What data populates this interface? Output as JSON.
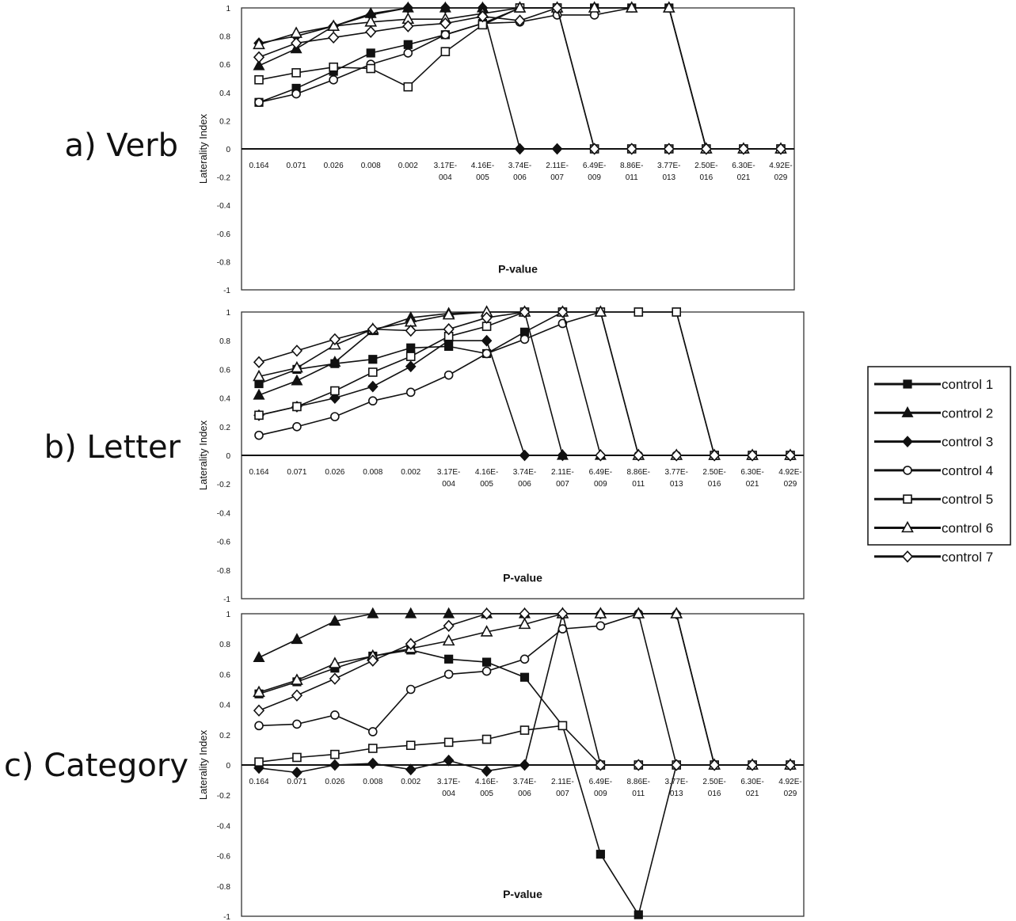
{
  "legend": {
    "entries": [
      {
        "label": "control 1",
        "marker": "square-filled"
      },
      {
        "label": "control 2",
        "marker": "triangle-filled"
      },
      {
        "label": "control 3",
        "marker": "diamond-filled"
      },
      {
        "label": "control 4",
        "marker": "circle-open"
      },
      {
        "label": "control 5",
        "marker": "square-open"
      },
      {
        "label": "control 6",
        "marker": "triangle-open"
      },
      {
        "label": "control 7",
        "marker": "diamond-open"
      }
    ]
  },
  "chart_data": [
    {
      "type": "line",
      "panel_label": "a) Verb",
      "xlabel": "P-value",
      "ylabel": "Laterality Index",
      "ylim": [
        -1,
        1
      ],
      "yticks": [
        "1",
        "0.8",
        "0.6",
        "0.4",
        "0.2",
        "0",
        "-0.2",
        "-0.4",
        "-0.6",
        "-0.8",
        "-1"
      ],
      "categories": [
        "0.164",
        "0.071",
        "0.026",
        "0.008",
        "0.002",
        "3.17E-004",
        "4.16E-005",
        "3.74E-006",
        "2.11E-007",
        "6.49E-009",
        "8.86E-011",
        "3.77E-013",
        "2.50E-016",
        "6.30E-021",
        "4.92E-029"
      ],
      "grid": false,
      "series": [
        {
          "name": "control 1",
          "values": [
            0.33,
            0.43,
            0.55,
            0.68,
            0.74,
            0.81,
            0.89,
            1,
            1,
            1,
            1,
            1,
            0,
            0,
            0
          ]
        },
        {
          "name": "control 2",
          "values": [
            0.59,
            0.71,
            0.87,
            0.96,
            1,
            1,
            1,
            1,
            1,
            1,
            1,
            1,
            0,
            0,
            0
          ]
        },
        {
          "name": "control 3",
          "values": [
            0.75,
            0.8,
            0.87,
            0.95,
            1,
            1,
            1,
            0,
            0,
            0,
            0,
            0,
            0,
            0,
            0
          ]
        },
        {
          "name": "control 4",
          "values": [
            0.33,
            0.39,
            0.49,
            0.6,
            0.68,
            0.81,
            0.89,
            0.9,
            0.95,
            0.95,
            1,
            1,
            0,
            0,
            0
          ]
        },
        {
          "name": "control 5",
          "values": [
            0.49,
            0.54,
            0.58,
            0.57,
            0.44,
            0.69,
            0.88,
            1,
            1,
            0,
            0,
            0,
            0,
            0,
            0
          ]
        },
        {
          "name": "control 6",
          "values": [
            0.74,
            0.82,
            0.87,
            0.9,
            0.92,
            0.92,
            0.96,
            1,
            1,
            1,
            1,
            1,
            0,
            0,
            0
          ]
        },
        {
          "name": "control 7",
          "values": [
            0.65,
            0.75,
            0.79,
            0.83,
            0.87,
            0.89,
            0.94,
            0.91,
            1,
            0,
            0,
            0,
            0,
            0,
            0
          ]
        }
      ]
    },
    {
      "type": "line",
      "panel_label": "b) Letter",
      "xlabel": "P-value",
      "ylabel": "Laterality Index",
      "ylim": [
        -1,
        1
      ],
      "yticks": [
        "1",
        "0.8",
        "0.6",
        "0.4",
        "0.2",
        "0",
        "-0.2",
        "-0.4",
        "-0.6",
        "-0.8",
        "-1"
      ],
      "categories": [
        "0.164",
        "0.071",
        "0.026",
        "0.008",
        "0.002",
        "3.17E-004",
        "4.16E-005",
        "3.74E-006",
        "2.11E-007",
        "6.49E-009",
        "8.86E-011",
        "3.77E-013",
        "2.50E-016",
        "6.30E-021",
        "4.92E-029"
      ],
      "grid": false,
      "series": [
        {
          "name": "control 1",
          "values": [
            0.5,
            0.6,
            0.64,
            0.67,
            0.75,
            0.76,
            0.71,
            0.86,
            1,
            1,
            1,
            1,
            0,
            0,
            0
          ]
        },
        {
          "name": "control 2",
          "values": [
            0.42,
            0.52,
            0.65,
            0.87,
            0.96,
            0.99,
            1,
            1,
            0,
            0,
            0,
            0,
            0,
            0,
            0
          ]
        },
        {
          "name": "control 3",
          "values": [
            0.28,
            0.34,
            0.4,
            0.48,
            0.62,
            0.8,
            0.8,
            0,
            0,
            0,
            0,
            0,
            0,
            0,
            0
          ]
        },
        {
          "name": "control 4",
          "values": [
            0.14,
            0.2,
            0.27,
            0.38,
            0.44,
            0.56,
            0.71,
            0.81,
            0.92,
            1,
            0,
            0,
            0,
            0,
            0
          ]
        },
        {
          "name": "control 5",
          "values": [
            0.28,
            0.34,
            0.45,
            0.58,
            0.69,
            0.83,
            0.9,
            1,
            1,
            1,
            1,
            1,
            0,
            0,
            0
          ]
        },
        {
          "name": "control 6",
          "values": [
            0.55,
            0.61,
            0.77,
            0.88,
            0.93,
            0.98,
            1,
            1,
            1,
            1,
            0,
            0,
            0,
            0,
            0
          ]
        },
        {
          "name": "control 7",
          "values": [
            0.65,
            0.73,
            0.81,
            0.88,
            0.87,
            0.88,
            0.96,
            1,
            1,
            0,
            0,
            0,
            0,
            0,
            0
          ]
        }
      ]
    },
    {
      "type": "line",
      "panel_label": "c) Category",
      "xlabel": "P-value",
      "ylabel": "Laterality Index",
      "ylim": [
        -1,
        1
      ],
      "yticks": [
        "1",
        "0.8",
        "0.6",
        "0.4",
        "0.2",
        "0",
        "-0.2",
        "-0.4",
        "-0.6",
        "-0.8",
        "-1"
      ],
      "categories": [
        "0.164",
        "0.071",
        "0.026",
        "0.008",
        "0.002",
        "3.17E-004",
        "4.16E-005",
        "3.74E-006",
        "2.11E-007",
        "6.49E-009",
        "8.86E-011",
        "3.77E-013",
        "2.50E-016",
        "6.30E-021",
        "4.92E-029"
      ],
      "grid": false,
      "series": [
        {
          "name": "control 1",
          "values": [
            0.47,
            0.55,
            0.64,
            0.72,
            0.76,
            0.7,
            0.68,
            0.58,
            0.26,
            -0.59,
            -0.99,
            0,
            0,
            0,
            0
          ]
        },
        {
          "name": "control 2",
          "values": [
            0.71,
            0.83,
            0.95,
            1,
            1,
            1,
            1,
            1,
            1,
            1,
            1,
            1,
            0,
            0,
            0
          ]
        },
        {
          "name": "control 3",
          "values": [
            -0.02,
            -0.05,
            0,
            0.01,
            -0.03,
            0.03,
            -0.04,
            0,
            1,
            1,
            1,
            1,
            0,
            0,
            0
          ]
        },
        {
          "name": "control 4",
          "values": [
            0.26,
            0.27,
            0.33,
            0.22,
            0.5,
            0.6,
            0.62,
            0.7,
            0.9,
            0.92,
            1,
            0,
            0,
            0,
            0
          ]
        },
        {
          "name": "control 5",
          "values": [
            0.02,
            0.05,
            0.07,
            0.11,
            0.13,
            0.15,
            0.17,
            0.23,
            0.26,
            0,
            0,
            0,
            0,
            0,
            0
          ]
        },
        {
          "name": "control 6",
          "values": [
            0.48,
            0.56,
            0.67,
            0.72,
            0.77,
            0.82,
            0.88,
            0.93,
            1,
            1,
            1,
            1,
            0,
            0,
            0
          ]
        },
        {
          "name": "control 7",
          "values": [
            0.36,
            0.46,
            0.57,
            0.69,
            0.8,
            0.92,
            1,
            1,
            1,
            0,
            0,
            0,
            0,
            0,
            0
          ]
        }
      ]
    }
  ]
}
